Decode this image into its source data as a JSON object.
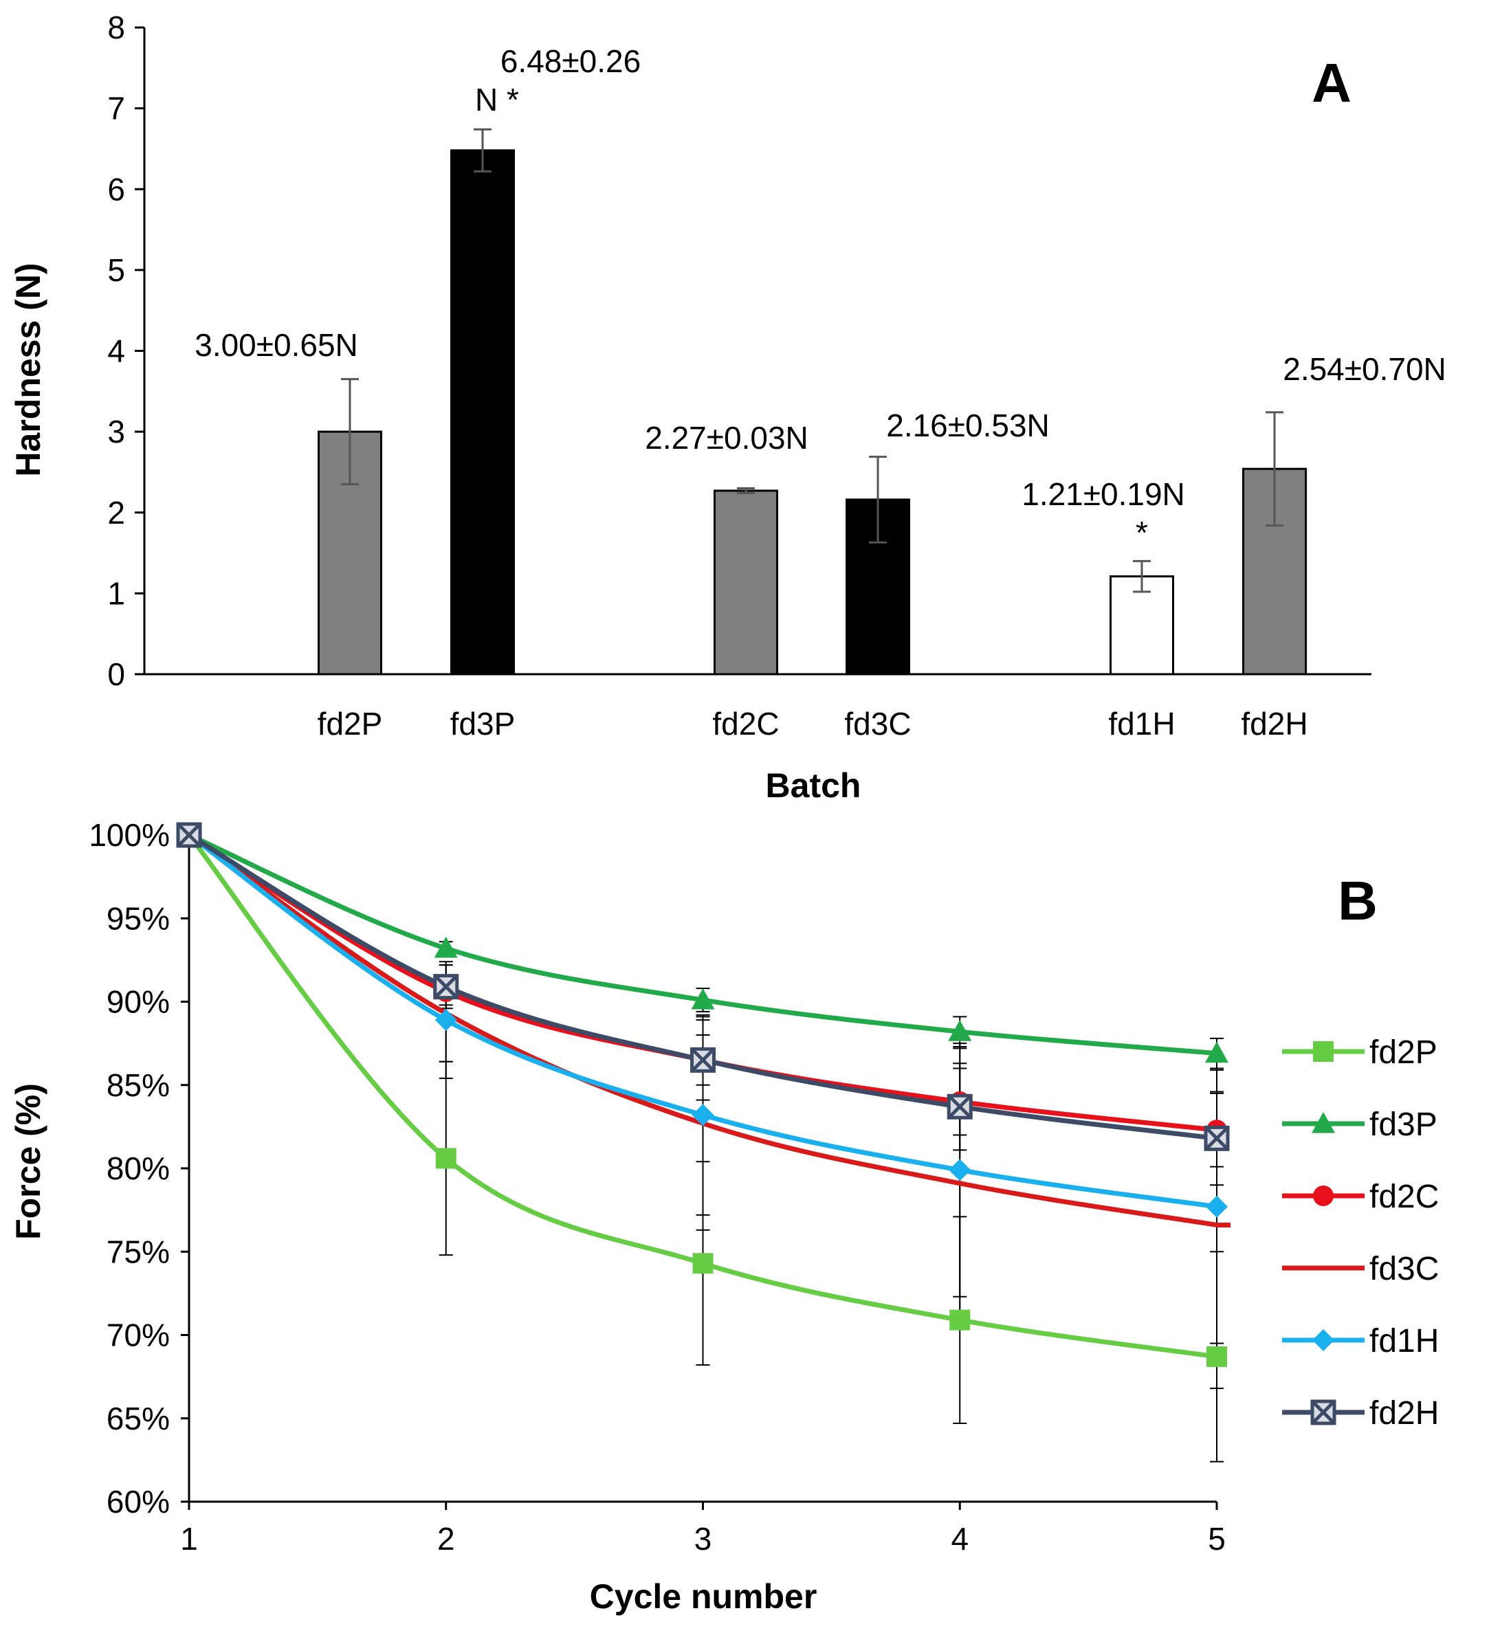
{
  "chart_data": [
    {
      "panel": "A",
      "type": "bar",
      "xlabel": "Batch",
      "ylabel": "Hardness (N)",
      "ylim": [
        0,
        8
      ],
      "yticks": [
        "0",
        "1",
        "2",
        "3",
        "4",
        "5",
        "6",
        "7",
        "8"
      ],
      "categories": [
        "fd2P",
        "fd3P",
        "fd2C",
        "fd3C",
        "fd1H",
        "fd2H"
      ],
      "values": [
        3.0,
        6.48,
        2.27,
        2.16,
        1.21,
        2.54
      ],
      "errors": [
        0.65,
        0.26,
        0.03,
        0.53,
        0.19,
        0.7
      ],
      "bar_colors": [
        "#808080",
        "#000000",
        "#808080",
        "#000000",
        "#ffffff",
        "#808080"
      ],
      "annotations": [
        "3.00±0.65N",
        "6.48±0.26\nN *",
        "2.27±0.03N",
        "2.16±0.53N",
        "1.21±0.19N\n*",
        "2.54±0.70N"
      ]
    },
    {
      "panel": "B",
      "type": "line",
      "xlabel": "Cycle number",
      "ylabel": "Force (%)",
      "x": [
        1,
        2,
        3,
        4,
        5
      ],
      "ylim": [
        60,
        100
      ],
      "yticks": [
        "60%",
        "65%",
        "70%",
        "75%",
        "80%",
        "85%",
        "90%",
        "95%",
        "100%"
      ],
      "legend_position": "right",
      "series": [
        {
          "name": "fd2P",
          "color": "#66cc44",
          "marker": "square",
          "values": [
            100,
            80.6,
            74.3,
            70.9,
            68.7
          ],
          "errors": [
            0,
            5.8,
            6.1,
            6.2,
            6.3
          ]
        },
        {
          "name": "fd3P",
          "color": "#22aa4a",
          "marker": "triangle",
          "values": [
            100,
            93.2,
            90.1,
            88.2,
            86.9
          ],
          "errors": [
            0,
            0.4,
            0.7,
            0.9,
            0.9
          ]
        },
        {
          "name": "fd2C",
          "color": "#e8101a",
          "marker": "circle",
          "values": [
            100,
            90.6,
            86.5,
            84.0,
            82.3
          ],
          "errors": [
            0,
            0.8,
            1.5,
            2.0,
            2.2
          ]
        },
        {
          "name": "fd3C",
          "color": "#d91a1a",
          "marker": "dash",
          "values": [
            100,
            89.3,
            82.7,
            79.1,
            76.6
          ],
          "errors": [
            0,
            2.9,
            6.4,
            8.1,
            9.8
          ]
        },
        {
          "name": "fd1H",
          "color": "#1ab0ee",
          "marker": "diamond",
          "values": [
            100,
            88.9,
            83.2,
            79.9,
            77.7
          ],
          "errors": [
            0,
            3.5,
            6.0,
            7.6,
            8.2
          ]
        },
        {
          "name": "fd2H",
          "color": "#3d4b66",
          "marker": "xbox",
          "values": [
            100,
            90.9,
            86.5,
            83.7,
            81.8
          ],
          "errors": [
            0,
            1.3,
            2.4,
            2.6,
            2.8
          ]
        }
      ]
    }
  ],
  "panel_labels": {
    "a": "A",
    "b": "B"
  }
}
